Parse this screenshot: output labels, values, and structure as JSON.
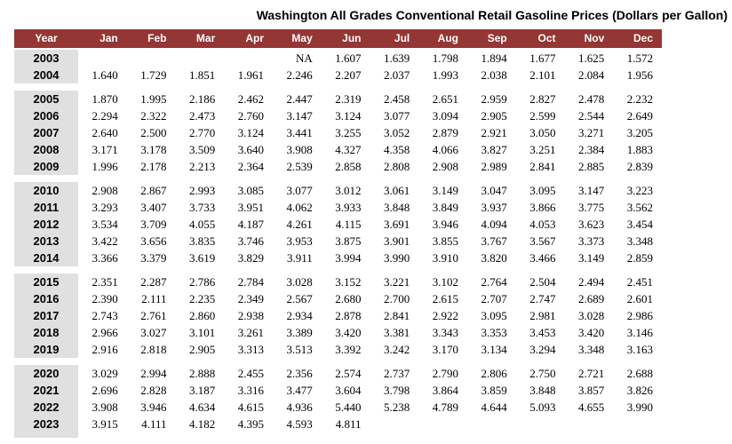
{
  "chart_data": {
    "type": "table",
    "title": "Washington All Grades Conventional Retail Gasoline Prices (Dollars per Gallon)",
    "columns": [
      "Year",
      "Jan",
      "Feb",
      "Mar",
      "Apr",
      "May",
      "Jun",
      "Jul",
      "Aug",
      "Sep",
      "Oct",
      "Nov",
      "Dec"
    ],
    "na_label": "NA",
    "row_groups": [
      {
        "rows": [
          {
            "year": "2003",
            "values": [
              "",
              "",
              "",
              "",
              "NA",
              "1.607",
              "1.639",
              "1.798",
              "1.894",
              "1.677",
              "1.625",
              "1.572"
            ]
          },
          {
            "year": "2004",
            "values": [
              "1.640",
              "1.729",
              "1.851",
              "1.961",
              "2.246",
              "2.207",
              "2.037",
              "1.993",
              "2.038",
              "2.101",
              "2.084",
              "1.956"
            ]
          }
        ]
      },
      {
        "rows": [
          {
            "year": "2005",
            "values": [
              "1.870",
              "1.995",
              "2.186",
              "2.462",
              "2.447",
              "2.319",
              "2.458",
              "2.651",
              "2.959",
              "2.827",
              "2.478",
              "2.232"
            ]
          },
          {
            "year": "2006",
            "values": [
              "2.294",
              "2.322",
              "2.473",
              "2.760",
              "3.147",
              "3.124",
              "3.077",
              "3.094",
              "2.905",
              "2.599",
              "2.544",
              "2.649"
            ]
          },
          {
            "year": "2007",
            "values": [
              "2.640",
              "2.500",
              "2.770",
              "3.124",
              "3.441",
              "3.255",
              "3.052",
              "2.879",
              "2.921",
              "3.050",
              "3.271",
              "3.205"
            ]
          },
          {
            "year": "2008",
            "values": [
              "3.171",
              "3.178",
              "3.509",
              "3.640",
              "3.908",
              "4.327",
              "4.358",
              "4.066",
              "3.827",
              "3.251",
              "2.384",
              "1.883"
            ]
          },
          {
            "year": "2009",
            "values": [
              "1.996",
              "2.178",
              "2.213",
              "2.364",
              "2.539",
              "2.858",
              "2.808",
              "2.908",
              "2.989",
              "2.841",
              "2.885",
              "2.839"
            ]
          }
        ]
      },
      {
        "rows": [
          {
            "year": "2010",
            "values": [
              "2.908",
              "2.867",
              "2.993",
              "3.085",
              "3.077",
              "3.012",
              "3.061",
              "3.149",
              "3.047",
              "3.095",
              "3.147",
              "3.223"
            ]
          },
          {
            "year": "2011",
            "values": [
              "3.293",
              "3.407",
              "3.733",
              "3.951",
              "4.062",
              "3.933",
              "3.848",
              "3.849",
              "3.937",
              "3.866",
              "3.775",
              "3.562"
            ]
          },
          {
            "year": "2012",
            "values": [
              "3.534",
              "3.709",
              "4.055",
              "4.187",
              "4.261",
              "4.115",
              "3.691",
              "3.946",
              "4.094",
              "4.053",
              "3.623",
              "3.454"
            ]
          },
          {
            "year": "2013",
            "values": [
              "3.422",
              "3.656",
              "3.835",
              "3.746",
              "3.953",
              "3.875",
              "3.901",
              "3.855",
              "3.767",
              "3.567",
              "3.373",
              "3.348"
            ]
          },
          {
            "year": "2014",
            "values": [
              "3.366",
              "3.379",
              "3.619",
              "3.829",
              "3.911",
              "3.994",
              "3.990",
              "3.910",
              "3.820",
              "3.466",
              "3.149",
              "2.859"
            ]
          }
        ]
      },
      {
        "rows": [
          {
            "year": "2015",
            "values": [
              "2.351",
              "2.287",
              "2.786",
              "2.784",
              "3.028",
              "3.152",
              "3.221",
              "3.102",
              "2.764",
              "2.504",
              "2.494",
              "2.451"
            ]
          },
          {
            "year": "2016",
            "values": [
              "2.390",
              "2.111",
              "2.235",
              "2.349",
              "2.567",
              "2.680",
              "2.700",
              "2.615",
              "2.707",
              "2.747",
              "2.689",
              "2.601"
            ]
          },
          {
            "year": "2017",
            "values": [
              "2.743",
              "2.761",
              "2.860",
              "2.938",
              "2.934",
              "2.878",
              "2.841",
              "2.922",
              "3.095",
              "2.981",
              "3.028",
              "2.986"
            ]
          },
          {
            "year": "2018",
            "values": [
              "2.966",
              "3.027",
              "3.101",
              "3.261",
              "3.389",
              "3.420",
              "3.381",
              "3.343",
              "3.353",
              "3.453",
              "3.420",
              "3.146"
            ]
          },
          {
            "year": "2019",
            "values": [
              "2.916",
              "2.818",
              "2.905",
              "3.313",
              "3.513",
              "3.392",
              "3.242",
              "3.170",
              "3.134",
              "3.294",
              "3.348",
              "3.163"
            ]
          }
        ]
      },
      {
        "rows": [
          {
            "year": "2020",
            "values": [
              "3.029",
              "2.994",
              "2.888",
              "2.455",
              "2.356",
              "2.574",
              "2.737",
              "2.790",
              "2.806",
              "2.750",
              "2.721",
              "2.688"
            ]
          },
          {
            "year": "2021",
            "values": [
              "2.696",
              "2.828",
              "3.187",
              "3.316",
              "3.477",
              "3.604",
              "3.798",
              "3.864",
              "3.859",
              "3.848",
              "3.857",
              "3.826"
            ]
          },
          {
            "year": "2022",
            "values": [
              "3.908",
              "3.946",
              "4.634",
              "4.615",
              "4.936",
              "5.440",
              "5.238",
              "4.789",
              "4.644",
              "5.093",
              "4.655",
              "3.990"
            ]
          },
          {
            "year": "2023",
            "values": [
              "3.915",
              "4.111",
              "4.182",
              "4.395",
              "4.593",
              "4.811",
              "",
              "",
              "",
              "",
              "",
              ""
            ]
          }
        ]
      }
    ]
  },
  "colors": {
    "header_bg": "#943634",
    "header_text": "#ffffff",
    "year_column_bg": "#e0e0e0",
    "value_text": "#000000"
  }
}
